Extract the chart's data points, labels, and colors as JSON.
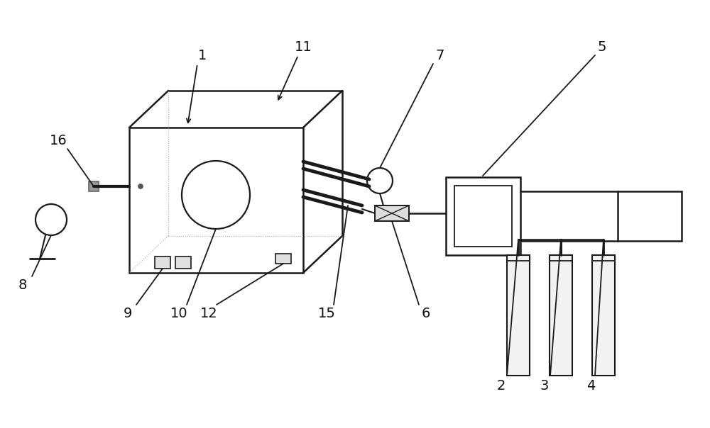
{
  "bg_color": "#ffffff",
  "line_color": "#1a1a1a",
  "label_color": "#111111",
  "font_size": 14,
  "lw_main": 1.8,
  "lw_thin": 1.2
}
